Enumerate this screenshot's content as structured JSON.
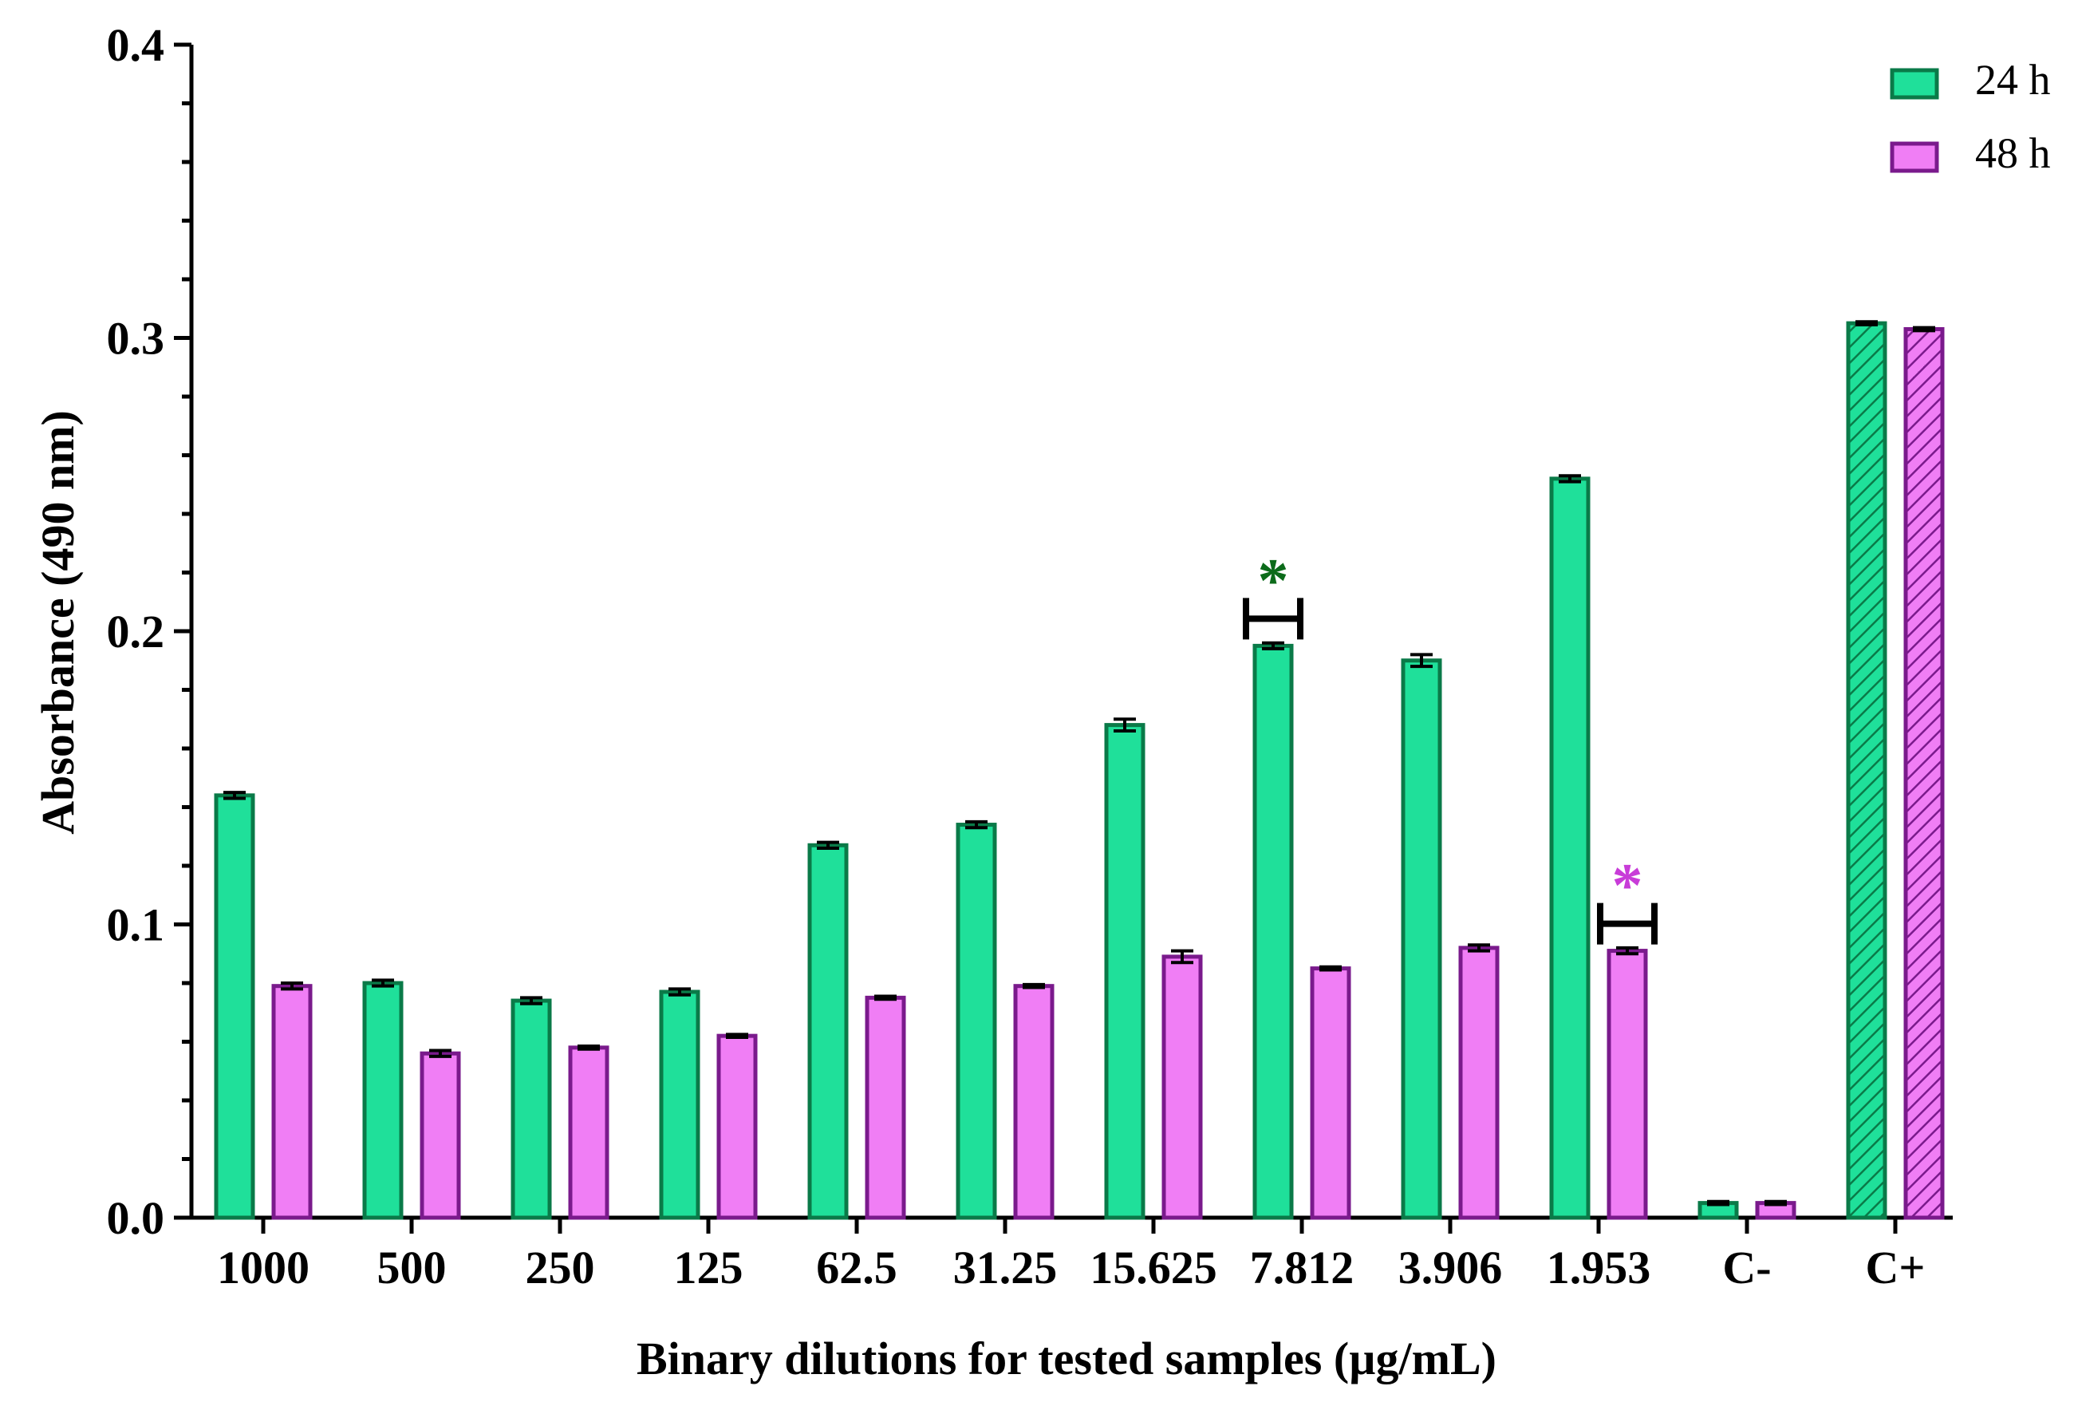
{
  "chart_data": {
    "type": "bar",
    "title": "",
    "xlabel": "Binary dilutions for tested samples (µg/mL)",
    "ylabel": "Absorbance (490 nm)",
    "ylim": [
      0,
      0.4
    ],
    "yticks": [
      "0.0",
      "0.1",
      "0.2",
      "0.3",
      "0.4"
    ],
    "categories": [
      "1000",
      "500",
      "250",
      "125",
      "62.5",
      "31.25",
      "15.625",
      "7.812",
      "3.906",
      "1.953",
      "C-",
      "C+"
    ],
    "series": [
      {
        "name": "24 h",
        "fill": "#1fe09a",
        "stroke": "#0a7a48",
        "values": [
          0.144,
          0.08,
          0.074,
          0.077,
          0.127,
          0.134,
          0.168,
          0.195,
          0.19,
          0.252,
          0.005,
          0.305
        ],
        "errors": [
          0.001,
          0.001,
          0.001,
          0.001,
          0.001,
          0.001,
          0.002,
          0.001,
          0.002,
          0.001,
          0.0005,
          0.0005
        ]
      },
      {
        "name": "48 h",
        "fill": "#f07ef5",
        "stroke": "#7a1a8c",
        "values": [
          0.079,
          0.056,
          0.058,
          0.062,
          0.075,
          0.079,
          0.089,
          0.085,
          0.092,
          0.091,
          0.005,
          0.303
        ],
        "errors": [
          0.001,
          0.001,
          0.0005,
          0.0005,
          0.0005,
          0.0005,
          0.002,
          0.0005,
          0.001,
          0.001,
          0.0005,
          0.0005
        ]
      }
    ],
    "hatched_categories": [
      "C+"
    ],
    "annotations": [
      {
        "text": "*",
        "category": "7.812",
        "series": "24 h",
        "color": "#0c6b1a"
      },
      {
        "text": "*",
        "category": "1.953",
        "series": "48 h",
        "color": "#c83cd8"
      }
    ],
    "legend_position": "top-right",
    "grid": false
  }
}
